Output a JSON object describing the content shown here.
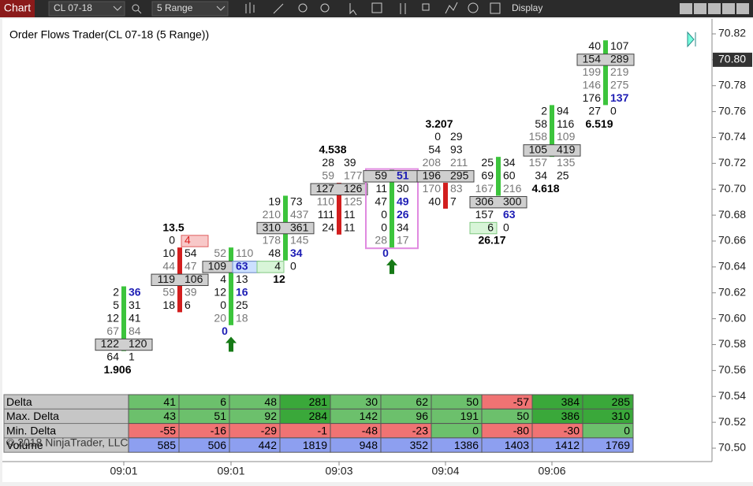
{
  "toolbar": {
    "tab": "Chart",
    "instrument": "CL 07-18",
    "period": "5 Range",
    "display": "Display"
  },
  "title": "Order Flows Trader(CL 07-18 (5 Range))",
  "price_axis": {
    "labels": [
      "70.82",
      "70.80",
      "70.78",
      "70.76",
      "70.74",
      "70.72",
      "70.70",
      "70.68",
      "70.66",
      "70.64",
      "70.62",
      "70.60",
      "70.58",
      "70.56",
      "70.54",
      "70.52",
      "70.50"
    ],
    "current": "70.80"
  },
  "time_axis": {
    "labels": [
      "09:01",
      "09:01",
      "09:03",
      "09:04",
      "09:06"
    ]
  },
  "bars": [
    {
      "open": 70.58,
      "close": 70.62,
      "label": "1.906",
      "label_pos": "below",
      "rows": [
        {
          "price": 70.62,
          "bid": 2,
          "ask": 36,
          "ask_style": "blue"
        },
        {
          "price": 70.61,
          "bid": 5,
          "ask": 31
        },
        {
          "price": 70.6,
          "bid": 12,
          "ask": 41
        },
        {
          "price": 70.59,
          "bid": 67,
          "ask": 84,
          "dim": true
        },
        {
          "price": 70.58,
          "bid": 122,
          "ask": 120,
          "poc": true
        },
        {
          "price": 70.57,
          "bid": 64,
          "ask": 1
        }
      ]
    },
    {
      "open": 70.65,
      "close": 70.61,
      "label": "13.5",
      "label_pos": "above",
      "rows": [
        {
          "price": 70.66,
          "bid": 0,
          "ask": 4,
          "ask_style": "box-red"
        },
        {
          "price": 70.65,
          "bid": 10,
          "ask": 54
        },
        {
          "price": 70.64,
          "bid": 44,
          "ask": 47,
          "dim": true
        },
        {
          "price": 70.63,
          "bid": 119,
          "ask": 106,
          "poc": true
        },
        {
          "price": 70.62,
          "bid": 59,
          "ask": 39,
          "dim": true
        },
        {
          "price": 70.61,
          "bid": 18,
          "ask": 6
        }
      ]
    },
    {
      "open": 70.6,
      "close": 70.65,
      "label": "0",
      "label_pos": "below",
      "label_style": "blue",
      "arrow": true,
      "rows": [
        {
          "price": 70.65,
          "bid": 52,
          "ask": 110,
          "dim": true
        },
        {
          "price": 70.64,
          "bid": 109,
          "ask": 63,
          "poc": true,
          "ask_style": "box-blue"
        },
        {
          "price": 70.63,
          "bid": 4,
          "ask": 13
        },
        {
          "price": 70.62,
          "bid": 12,
          "ask": 16,
          "ask_style": "blue"
        },
        {
          "price": 70.61,
          "bid": 0,
          "ask": 25
        },
        {
          "price": 70.6,
          "bid": 20,
          "ask": 18,
          "dim": true
        }
      ]
    },
    {
      "open": 70.65,
      "close": 70.69,
      "label": "12",
      "label_pos": "below",
      "rows": [
        {
          "price": 70.69,
          "bid": 19,
          "ask": 73
        },
        {
          "price": 70.68,
          "bid": 210,
          "ask": 437,
          "dim": true
        },
        {
          "price": 70.67,
          "bid": 310,
          "ask": 361,
          "poc": true
        },
        {
          "price": 70.66,
          "bid": 178,
          "ask": 145,
          "dim": true
        },
        {
          "price": 70.65,
          "bid": 48,
          "ask": 34,
          "ask_style": "blue"
        },
        {
          "price": 70.64,
          "bid": 4,
          "ask": 0,
          "bid_style": "box-green"
        }
      ]
    },
    {
      "open": 70.7,
      "close": 70.67,
      "label": "4.538",
      "label_pos": "above",
      "rows": [
        {
          "price": 70.72,
          "bid": 28,
          "ask": 39
        },
        {
          "price": 70.71,
          "bid": 59,
          "ask": 177,
          "dim": true
        },
        {
          "price": 70.7,
          "bid": 127,
          "ask": 126,
          "poc": true
        },
        {
          "price": 70.69,
          "bid": 110,
          "ask": 125,
          "dim": true
        },
        {
          "price": 70.68,
          "bid": 111,
          "ask": 11
        },
        {
          "price": 70.67,
          "bid": 24,
          "ask": 11
        }
      ]
    },
    {
      "open": 70.66,
      "close": 70.71,
      "label": "0",
      "label_pos": "below",
      "label_style": "blue",
      "arrow": true,
      "highlight": true,
      "rows": [
        {
          "price": 70.71,
          "bid": 59,
          "ask": 51,
          "poc": true,
          "ask_style": "blue"
        },
        {
          "price": 70.7,
          "bid": 11,
          "ask": 30
        },
        {
          "price": 70.69,
          "bid": 47,
          "ask": 49,
          "ask_style": "blue"
        },
        {
          "price": 70.68,
          "bid": 0,
          "ask": 26,
          "ask_style": "blue"
        },
        {
          "price": 70.67,
          "bid": 0,
          "ask": 34
        },
        {
          "price": 70.66,
          "bid": 28,
          "ask": 17,
          "dim": true
        }
      ]
    },
    {
      "open": 70.7,
      "close": 70.69,
      "label": "3.207",
      "label_pos": "above",
      "rows": [
        {
          "price": 70.74,
          "bid": 0,
          "ask": 29
        },
        {
          "price": 70.73,
          "bid": 54,
          "ask": 93
        },
        {
          "price": 70.72,
          "bid": 208,
          "ask": 211,
          "dim": true
        },
        {
          "price": 70.71,
          "bid": 196,
          "ask": 295,
          "poc": true
        },
        {
          "price": 70.7,
          "bid": 170,
          "ask": 83,
          "dim": true
        },
        {
          "price": 70.69,
          "bid": 40,
          "ask": 7
        }
      ]
    },
    {
      "open": 70.7,
      "close": 70.72,
      "label": "26.17",
      "label_pos": "below",
      "rows": [
        {
          "price": 70.72,
          "bid": 25,
          "ask": 34
        },
        {
          "price": 70.71,
          "bid": 69,
          "ask": 60
        },
        {
          "price": 70.7,
          "bid": 167,
          "ask": 216,
          "dim": true
        },
        {
          "price": 70.69,
          "bid": 306,
          "ask": 300,
          "poc": true
        },
        {
          "price": 70.68,
          "bid": 157,
          "ask": 63,
          "ask_style": "blue"
        },
        {
          "price": 70.67,
          "bid": 6,
          "ask": 0,
          "bid_style": "box-green"
        }
      ]
    },
    {
      "open": 70.73,
      "close": 70.76,
      "label": "4.618",
      "label_pos": "below",
      "rows": [
        {
          "price": 70.76,
          "bid": 2,
          "ask": 94
        },
        {
          "price": 70.75,
          "bid": 58,
          "ask": 116
        },
        {
          "price": 70.74,
          "bid": 158,
          "ask": 109,
          "dim": true
        },
        {
          "price": 70.73,
          "bid": 105,
          "ask": 419,
          "poc": true
        },
        {
          "price": 70.72,
          "bid": 157,
          "ask": 135,
          "dim": true
        },
        {
          "price": 70.71,
          "bid": 34,
          "ask": 25
        }
      ]
    },
    {
      "open": 70.77,
      "close": 70.81,
      "label": "6.519",
      "label_pos": "below",
      "rows": [
        {
          "price": 70.81,
          "bid": 40,
          "ask": 107
        },
        {
          "price": 70.8,
          "bid": 154,
          "ask": 289,
          "poc": true
        },
        {
          "price": 70.79,
          "bid": 199,
          "ask": 219,
          "dim": true
        },
        {
          "price": 70.78,
          "bid": 146,
          "ask": 275,
          "dim": true
        },
        {
          "price": 70.77,
          "bid": 176,
          "ask": 137,
          "ask_style": "blue"
        },
        {
          "price": 70.76,
          "bid": 27,
          "ask": 0
        }
      ]
    }
  ],
  "summary": {
    "rows": [
      {
        "label": "Delta",
        "values": [
          41,
          6,
          48,
          281,
          30,
          62,
          50,
          -57,
          384,
          285
        ]
      },
      {
        "label": "Max. Delta",
        "values": [
          43,
          51,
          92,
          284,
          142,
          96,
          191,
          50,
          386,
          310
        ]
      },
      {
        "label": "Min. Delta",
        "values": [
          -55,
          -16,
          -29,
          -1,
          -48,
          -23,
          0,
          -80,
          -30,
          0
        ]
      },
      {
        "label": "Volume",
        "values": [
          585,
          506,
          442,
          1819,
          948,
          352,
          1386,
          1403,
          1412,
          1769
        ],
        "style": "volume"
      }
    ]
  },
  "watermark": "© 2018 NinjaTrader, LLC"
}
